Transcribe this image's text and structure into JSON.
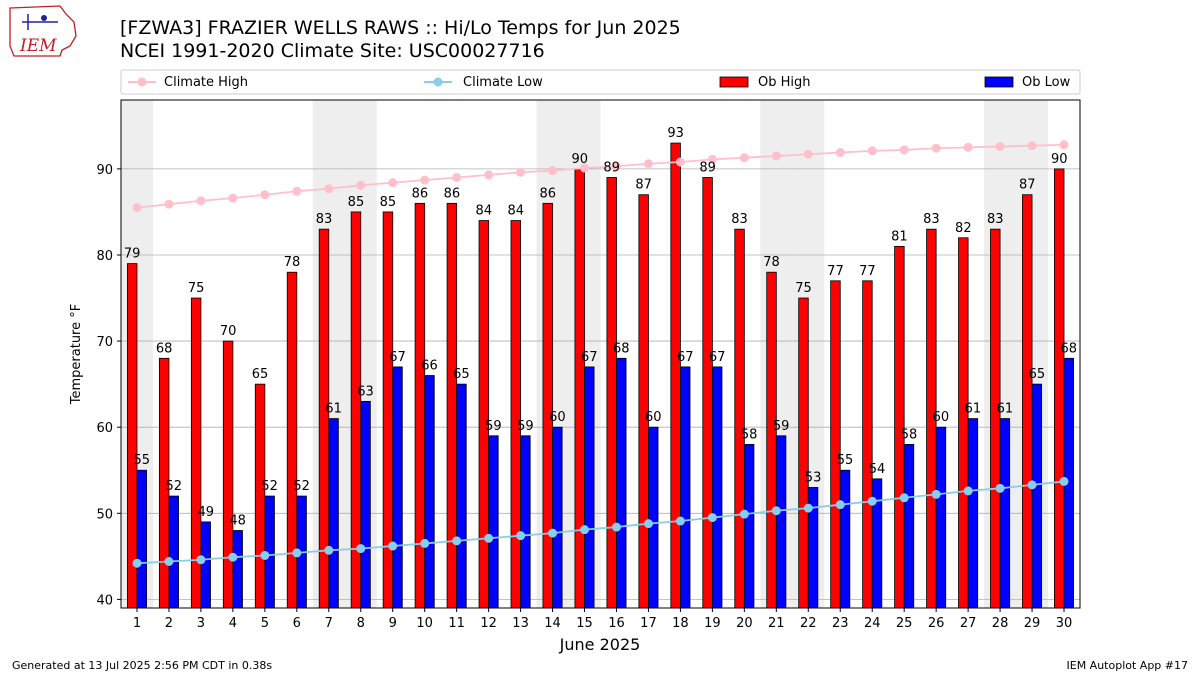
{
  "header": {
    "logo_text": "IEM",
    "title_line1": "[FZWA3] FRAZIER WELLS RAWS :: Hi/Lo Temps for Jun 2025",
    "title_line2": "NCEI 1991-2020 Climate Site: USC00027716"
  },
  "footer": {
    "generated": "Generated at 13 Jul 2025 2:56 PM CDT in 0.38s",
    "app": "IEM Autoplot App #17"
  },
  "colors": {
    "ob_high": "#ff0000",
    "ob_low": "#0000ff",
    "climate_high": "#ffc0cb",
    "climate_low": "#87ceeb",
    "weekend_band": "#eeeeee",
    "grid": "#b0b0b0"
  },
  "chart_data": {
    "type": "bar",
    "xlabel": "June 2025",
    "ylabel": "Temperature °F",
    "ylim": [
      39,
      98
    ],
    "yticks": [
      40,
      50,
      60,
      70,
      80,
      90
    ],
    "grid": true,
    "legend_position": "top",
    "categories": [
      "1",
      "2",
      "3",
      "4",
      "5",
      "6",
      "7",
      "8",
      "9",
      "10",
      "11",
      "12",
      "13",
      "14",
      "15",
      "16",
      "17",
      "18",
      "19",
      "20",
      "21",
      "22",
      "23",
      "24",
      "25",
      "26",
      "27",
      "28",
      "29",
      "30"
    ],
    "weekend_days": [
      1,
      7,
      8,
      14,
      15,
      21,
      22,
      28,
      29
    ],
    "series": [
      {
        "name": "Climate High",
        "kind": "line",
        "values": [
          85.5,
          85.9,
          86.3,
          86.6,
          87.0,
          87.4,
          87.7,
          88.1,
          88.4,
          88.7,
          89.0,
          89.3,
          89.6,
          89.8,
          90.1,
          90.3,
          90.6,
          90.8,
          91.1,
          91.3,
          91.5,
          91.7,
          91.9,
          92.1,
          92.2,
          92.4,
          92.5,
          92.6,
          92.7,
          92.8
        ]
      },
      {
        "name": "Climate Low",
        "kind": "line",
        "values": [
          44.2,
          44.4,
          44.6,
          44.9,
          45.1,
          45.4,
          45.7,
          45.9,
          46.2,
          46.5,
          46.8,
          47.1,
          47.4,
          47.7,
          48.1,
          48.4,
          48.8,
          49.1,
          49.5,
          49.9,
          50.3,
          50.6,
          51.0,
          51.4,
          51.8,
          52.2,
          52.6,
          52.9,
          53.3,
          53.7
        ]
      },
      {
        "name": "Ob High",
        "kind": "bar",
        "values": [
          79,
          68,
          75,
          70,
          65,
          78,
          83,
          85,
          85,
          86,
          86,
          84,
          84,
          86,
          90,
          89,
          87,
          93,
          89,
          83,
          78,
          75,
          77,
          77,
          81,
          83,
          82,
          83,
          87,
          90
        ]
      },
      {
        "name": "Ob Low",
        "kind": "bar",
        "values": [
          55,
          52,
          49,
          48,
          52,
          52,
          61,
          63,
          67,
          66,
          65,
          59,
          59,
          60,
          67,
          68,
          60,
          67,
          67,
          58,
          59,
          53,
          55,
          54,
          58,
          60,
          61,
          61,
          65,
          68
        ]
      }
    ]
  }
}
